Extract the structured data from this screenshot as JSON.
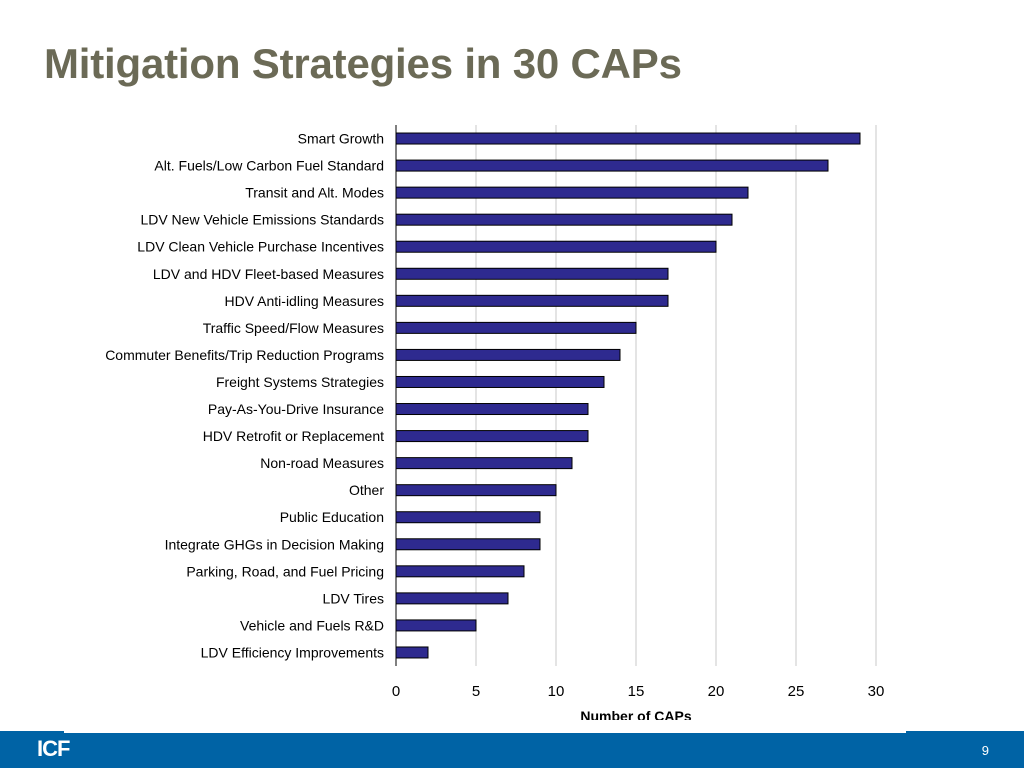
{
  "slide": {
    "title": "Mitigation Strategies in 30 CAPs",
    "page_number": "9",
    "logo_text": "ICF"
  },
  "colors": {
    "title": "#6b6a56",
    "bar_fill": "#2e2a8f",
    "bar_stroke": "#000000",
    "gridline": "#c8c8c8",
    "footer_band": "#0063a5"
  },
  "chart_data": {
    "type": "bar",
    "orientation": "horizontal",
    "categories": [
      "Smart Growth",
      "Alt. Fuels/Low Carbon Fuel Standard",
      "Transit and Alt. Modes",
      "LDV New Vehicle Emissions Standards",
      "LDV Clean Vehicle Purchase Incentives",
      "LDV and HDV Fleet-based Measures",
      "HDV Anti-idling Measures",
      "Traffic Speed/Flow Measures",
      "Commuter Benefits/Trip Reduction Programs",
      "Freight Systems Strategies",
      "Pay-As-You-Drive Insurance",
      "HDV Retrofit or Replacement",
      "Non-road Measures",
      "Other",
      "Public Education",
      "Integrate GHGs in Decision Making",
      "Parking, Road, and Fuel Pricing",
      "LDV Tires",
      "Vehicle and Fuels R&D",
      "LDV Efficiency Improvements"
    ],
    "values": [
      29,
      27,
      22,
      21,
      20,
      17,
      17,
      15,
      14,
      13,
      12,
      12,
      11,
      10,
      9,
      9,
      8,
      7,
      5,
      2
    ],
    "title": "Mitigation Strategies in 30 CAPs",
    "xlabel": "Number of CAPs",
    "ylabel": "",
    "xlim": [
      0,
      30
    ],
    "xticks": [
      0,
      5,
      10,
      15,
      20,
      25,
      30
    ],
    "grid": "vertical",
    "legend": "none"
  }
}
